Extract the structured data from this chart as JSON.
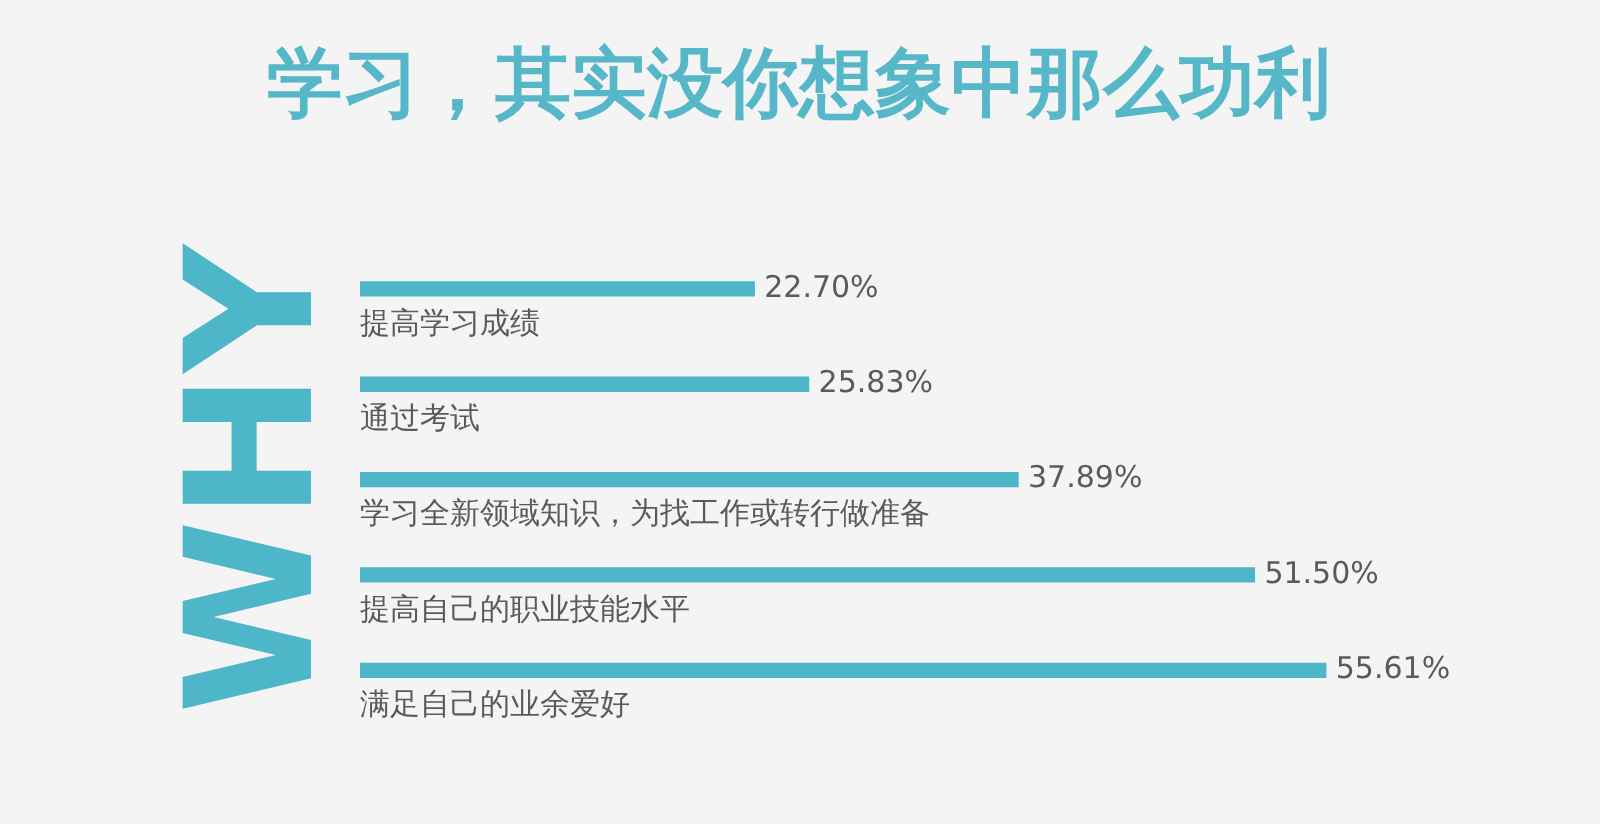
{
  "chart_data": {
    "type": "bar",
    "orientation": "horizontal",
    "title": "学习，其实没你想象中那么功利",
    "ylabel": "WHY",
    "categories": [
      "提高学习成绩",
      "通过考试",
      "学习全新领域知识，为找工作或转行做准备",
      "提高自己的职业技能水平",
      "满足自己的业余爱好"
    ],
    "values": [
      22.7,
      25.83,
      37.89,
      51.5,
      55.61
    ],
    "color": "#4db6c8",
    "value_labels": [
      "22.70%",
      "25.83%",
      "37.89%",
      "51.50%",
      "55.61%"
    ]
  }
}
